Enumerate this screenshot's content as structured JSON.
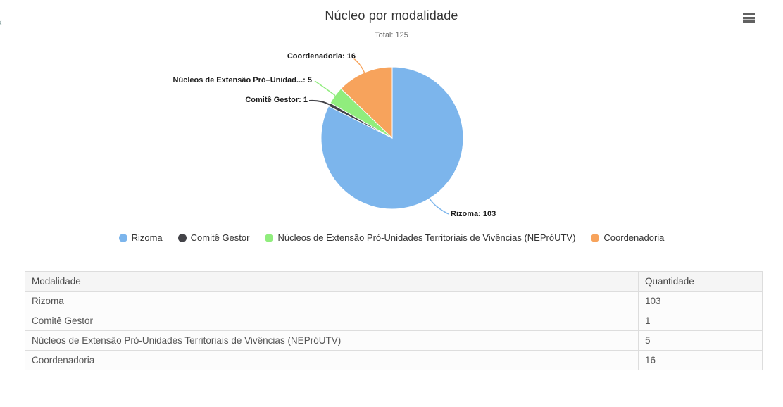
{
  "icons": {
    "edge_glyph": "«",
    "context_menu": "hamburger-menu-icon"
  },
  "chart": {
    "title": "Núcleo por modalidade",
    "subtitle": "Total: 125"
  },
  "chart_data": {
    "type": "pie",
    "title": "Núcleo por modalidade",
    "subtitle": "Total: 125",
    "total": 125,
    "start_angle_deg": 0,
    "direction": "clockwise",
    "legend_position": "bottom",
    "series": [
      {
        "name": "Rizoma",
        "value": 103,
        "color": "#7cb5ec",
        "data_label": "Rizoma: 103"
      },
      {
        "name": "Comitê Gestor",
        "value": 1,
        "color": "#434348",
        "data_label": "Comitê Gestor: 1"
      },
      {
        "name": "Núcleos de Extensão Pró-Unidades Territoriais de Vivências (NEPróUTV)",
        "value": 5,
        "color": "#90ed7d",
        "data_label": "Núcleos de Extensão Pró–Unidad...: 5"
      },
      {
        "name": "Coordenadoria",
        "value": 16,
        "color": "#f7a35c",
        "data_label": "Coordenadoria: 16"
      }
    ]
  },
  "table": {
    "headers": {
      "modalidade": "Modalidade",
      "quantidade": "Quantidade"
    },
    "rows": [
      {
        "modalidade": "Rizoma",
        "quantidade": "103"
      },
      {
        "modalidade": "Comitê Gestor",
        "quantidade": "1"
      },
      {
        "modalidade": "Núcleos de Extensão Pró-Unidades Territoriais de Vivências (NEPróUTV)",
        "quantidade": "5"
      },
      {
        "modalidade": "Coordenadoria",
        "quantidade": "16"
      }
    ]
  }
}
